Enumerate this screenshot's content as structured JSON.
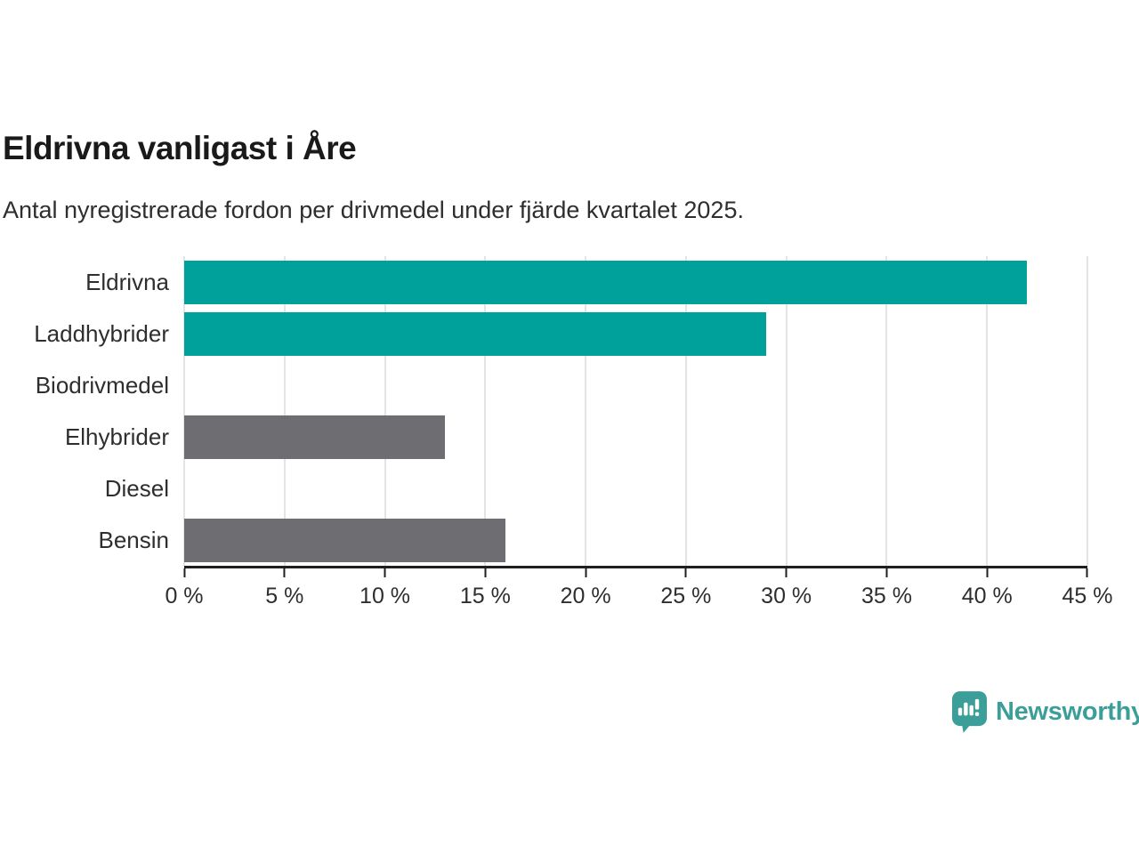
{
  "title": "Eldrivna vanligast i Åre",
  "subtitle": "Antal nyregistrerade fordon per drivmedel under fjärde kvartalet 2025.",
  "branding": {
    "logo_text": "Newsworthy",
    "logo_icon": "bar-chart-speech-bubble-icon"
  },
  "colors": {
    "accent_teal": "#00A19A",
    "neutral_gray": "#6E6E72",
    "logo_teal": "#3B9E98",
    "gridline": "#E4E4E4",
    "axis": "#1F1F1F",
    "title_text": "#1A1A1A",
    "body_text": "#2E2E2E"
  },
  "chart_data": {
    "type": "bar",
    "orientation": "horizontal",
    "title": "Eldrivna vanligast i Åre",
    "subtitle": "Antal nyregistrerade fordon per drivmedel under fjärde kvartalet 2025.",
    "categories": [
      "Eldrivna",
      "Laddhybrider",
      "Biodrivmedel",
      "Elhybrider",
      "Diesel",
      "Bensin"
    ],
    "values": [
      42,
      29,
      0,
      13,
      0,
      16
    ],
    "unit": "%",
    "bar_colors": [
      "#00A19A",
      "#00A19A",
      "#6E6E72",
      "#6E6E72",
      "#6E6E72",
      "#6E6E72"
    ],
    "x_ticks": [
      "0 %",
      "5 %",
      "10 %",
      "15 %",
      "20 %",
      "25 %",
      "30 %",
      "35 %",
      "40 %",
      "45 %"
    ],
    "xlim": [
      0,
      45
    ],
    "xlabel": "",
    "ylabel": "",
    "grid": "vertical",
    "legend": "none"
  }
}
